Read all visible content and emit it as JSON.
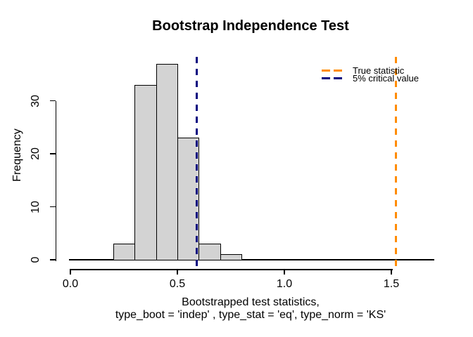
{
  "chart_data": {
    "type": "bar",
    "subtype": "histogram",
    "title": "Bootstrap Independence Test",
    "xlabel_line1": "Bootstrapped test statistics,",
    "xlabel_line2": "type_boot = 'indep' , type_stat = 'eq', type_norm = 'KS'",
    "ylabel": "Frequency",
    "bin_start": 0.2,
    "bin_width": 0.1,
    "counts": [
      3,
      33,
      37,
      23,
      3,
      1
    ],
    "bin_edges": [
      0.2,
      0.3,
      0.4,
      0.5,
      0.6,
      0.7,
      0.8
    ],
    "baseline_range": [
      0.0,
      1.7
    ],
    "xlim": [
      0.0,
      1.7
    ],
    "ylim": [
      0,
      37
    ],
    "x_ticks": [
      0.0,
      0.5,
      1.0,
      1.5
    ],
    "x_tick_labels": [
      "0.0",
      "0.5",
      "1.0",
      "1.5"
    ],
    "y_ticks": [
      0,
      10,
      20,
      30
    ],
    "y_tick_labels": [
      "0",
      "10",
      "20",
      "30"
    ],
    "grid": "off",
    "bar_fill": "#D3D3D3",
    "bar_border": "#000000",
    "vlines": [
      {
        "name": "true-statistic",
        "x": 1.52,
        "color": "#FF8C00",
        "style": "dashed",
        "label": "True statistic"
      },
      {
        "name": "critical-value",
        "x": 0.59,
        "color": "#000080",
        "style": "dashed",
        "label": "5% critical value"
      }
    ],
    "legend": {
      "position": "topright",
      "items": [
        {
          "label": "True statistic",
          "color": "#FF8C00"
        },
        {
          "label": "5% critical value",
          "color": "#000080"
        }
      ]
    }
  }
}
